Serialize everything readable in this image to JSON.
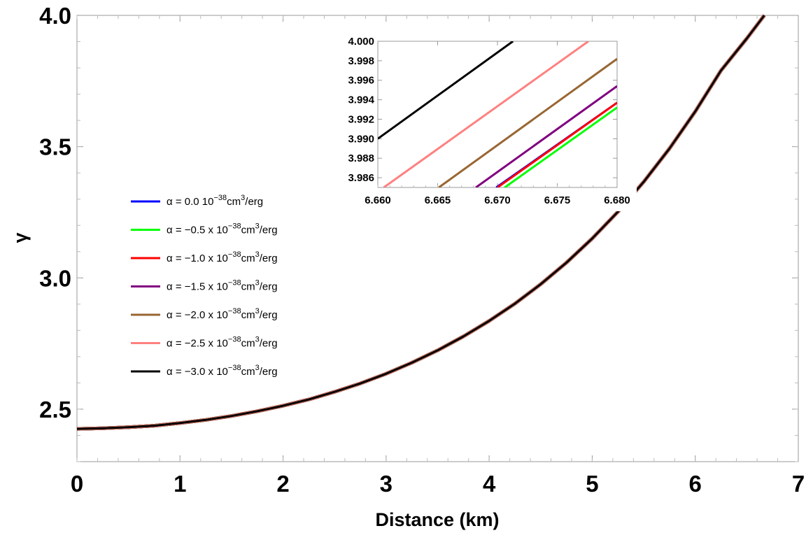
{
  "chart_data": [
    {
      "id": "main",
      "type": "line",
      "xlabel": "Distance (km)",
      "ylabel": "γ",
      "xlim": [
        0,
        7
      ],
      "ylim": [
        2.3,
        4.0
      ],
      "xticks": [
        "0",
        "1",
        "2",
        "3",
        "4",
        "5",
        "6",
        "7"
      ],
      "xtick_values": [
        0,
        1,
        2,
        3,
        4,
        5,
        6,
        7
      ],
      "yticks": [
        "2.5",
        "3.0",
        "3.5",
        "4.0"
      ],
      "ytick_values": [
        2.5,
        3.0,
        3.5,
        4.0
      ],
      "grid": false,
      "legend_position": "left",
      "x": [
        0,
        0.25,
        0.5,
        0.75,
        1.0,
        1.25,
        1.5,
        1.75,
        2.0,
        2.25,
        2.5,
        2.75,
        3.0,
        3.25,
        3.5,
        3.75,
        4.0,
        4.25,
        4.5,
        4.75,
        5.0,
        5.25,
        5.5,
        5.75,
        6.0,
        6.25,
        6.5,
        6.67
      ],
      "series": [
        {
          "name": "α = 0.0 10⁻³⁸cm³/erg",
          "legend_parts": [
            "α = 0.0 10",
            "−38",
            "cm",
            "3",
            "/erg"
          ],
          "color": "#0000ff",
          "y": [
            2.425,
            2.427,
            2.431,
            2.437,
            2.447,
            2.459,
            2.474,
            2.492,
            2.513,
            2.537,
            2.566,
            2.598,
            2.635,
            2.677,
            2.724,
            2.777,
            2.836,
            2.902,
            2.976,
            3.058,
            3.15,
            3.252,
            3.366,
            3.493,
            3.634,
            3.79,
            3.912,
            4.0
          ]
        },
        {
          "name": "α = −0.5 x 10⁻³⁸cm³/erg",
          "legend_parts": [
            "α = −0.5 x 10",
            "−38",
            "cm",
            "3",
            "/erg"
          ],
          "color": "#00ff00",
          "y": [
            2.425,
            2.427,
            2.431,
            2.437,
            2.447,
            2.459,
            2.474,
            2.492,
            2.513,
            2.537,
            2.566,
            2.598,
            2.635,
            2.677,
            2.724,
            2.777,
            2.836,
            2.902,
            2.976,
            3.058,
            3.15,
            3.252,
            3.366,
            3.493,
            3.634,
            3.79,
            3.912,
            4.0
          ]
        },
        {
          "name": "α = −1.0 x 10⁻³⁸cm³/erg",
          "legend_parts": [
            "α = −1.0 x 10",
            "−38",
            "cm",
            "3",
            "/erg"
          ],
          "color": "#ff0000",
          "y": [
            2.425,
            2.427,
            2.431,
            2.437,
            2.447,
            2.459,
            2.474,
            2.492,
            2.513,
            2.537,
            2.566,
            2.598,
            2.635,
            2.677,
            2.724,
            2.777,
            2.836,
            2.902,
            2.976,
            3.058,
            3.15,
            3.252,
            3.366,
            3.493,
            3.634,
            3.79,
            3.912,
            4.0
          ]
        },
        {
          "name": "α = −1.5 x 10⁻³⁸cm³/erg",
          "legend_parts": [
            "α = −1.5 x 10",
            "−38",
            "cm",
            "3",
            "/erg"
          ],
          "color": "#800080",
          "y": [
            2.425,
            2.427,
            2.431,
            2.437,
            2.447,
            2.459,
            2.474,
            2.492,
            2.513,
            2.537,
            2.566,
            2.598,
            2.635,
            2.677,
            2.724,
            2.777,
            2.836,
            2.902,
            2.976,
            3.058,
            3.15,
            3.252,
            3.366,
            3.493,
            3.634,
            3.79,
            3.912,
            4.0
          ]
        },
        {
          "name": "α = −2.0 x 10⁻³⁸cm³/erg",
          "legend_parts": [
            "α = −2.0 x 10",
            "−38",
            "cm",
            "3",
            "/erg"
          ],
          "color": "#996633",
          "y": [
            2.425,
            2.427,
            2.431,
            2.437,
            2.447,
            2.459,
            2.474,
            2.492,
            2.513,
            2.537,
            2.566,
            2.598,
            2.635,
            2.677,
            2.724,
            2.777,
            2.836,
            2.902,
            2.976,
            3.058,
            3.15,
            3.252,
            3.366,
            3.493,
            3.634,
            3.79,
            3.912,
            4.0
          ]
        },
        {
          "name": "α = −2.5 x 10⁻³⁸cm³/erg",
          "legend_parts": [
            "α = −2.5 x 10",
            "−38",
            "cm",
            "3",
            "/erg"
          ],
          "color": "#ff8080",
          "y": [
            2.425,
            2.427,
            2.431,
            2.437,
            2.447,
            2.459,
            2.474,
            2.492,
            2.513,
            2.537,
            2.566,
            2.598,
            2.635,
            2.677,
            2.724,
            2.777,
            2.836,
            2.902,
            2.976,
            3.058,
            3.15,
            3.252,
            3.366,
            3.493,
            3.634,
            3.79,
            3.912,
            4.0
          ]
        },
        {
          "name": "α = −3.0 x 10⁻³⁸cm³/erg",
          "legend_parts": [
            "α = −3.0 x 10",
            "−38",
            "cm",
            "3",
            "/erg"
          ],
          "color": "#000000",
          "y": [
            2.425,
            2.427,
            2.431,
            2.437,
            2.447,
            2.459,
            2.474,
            2.492,
            2.513,
            2.537,
            2.566,
            2.598,
            2.635,
            2.677,
            2.724,
            2.777,
            2.836,
            2.902,
            2.976,
            3.058,
            3.15,
            3.252,
            3.366,
            3.493,
            3.634,
            3.79,
            3.912,
            4.0
          ]
        }
      ]
    },
    {
      "id": "inset",
      "type": "line",
      "xlim": [
        6.66,
        6.68
      ],
      "ylim": [
        3.985,
        4.0
      ],
      "xticks": [
        "6.660",
        "6.665",
        "6.670",
        "6.675",
        "6.680"
      ],
      "xtick_values": [
        6.66,
        6.665,
        6.67,
        6.675,
        6.68
      ],
      "yticks": [
        "3.986",
        "3.988",
        "3.990",
        "3.992",
        "3.994",
        "3.996",
        "3.998",
        "4.000"
      ],
      "ytick_values": [
        3.986,
        3.988,
        3.99,
        3.992,
        3.994,
        3.996,
        3.998,
        4.0
      ],
      "grid": false,
      "series": [
        {
          "color": "#0000ff",
          "x": [
            6.6699,
            6.68
          ],
          "y": [
            3.985,
            3.9937
          ]
        },
        {
          "color": "#00ff00",
          "x": [
            6.6706,
            6.68
          ],
          "y": [
            3.985,
            3.9932
          ]
        },
        {
          "color": "#ff0000",
          "x": [
            6.67,
            6.68
          ],
          "y": [
            3.985,
            3.9937
          ]
        },
        {
          "color": "#800080",
          "x": [
            6.6682,
            6.68
          ],
          "y": [
            3.985,
            3.9954
          ]
        },
        {
          "color": "#996633",
          "x": [
            6.6651,
            6.68
          ],
          "y": [
            3.985,
            3.9982
          ]
        },
        {
          "color": "#ff8080",
          "x": [
            6.6605,
            6.6776
          ],
          "y": [
            3.985,
            4.0
          ]
        },
        {
          "color": "#000000",
          "x": [
            6.66,
            6.6713
          ],
          "y": [
            3.99,
            4.0
          ]
        }
      ]
    }
  ]
}
